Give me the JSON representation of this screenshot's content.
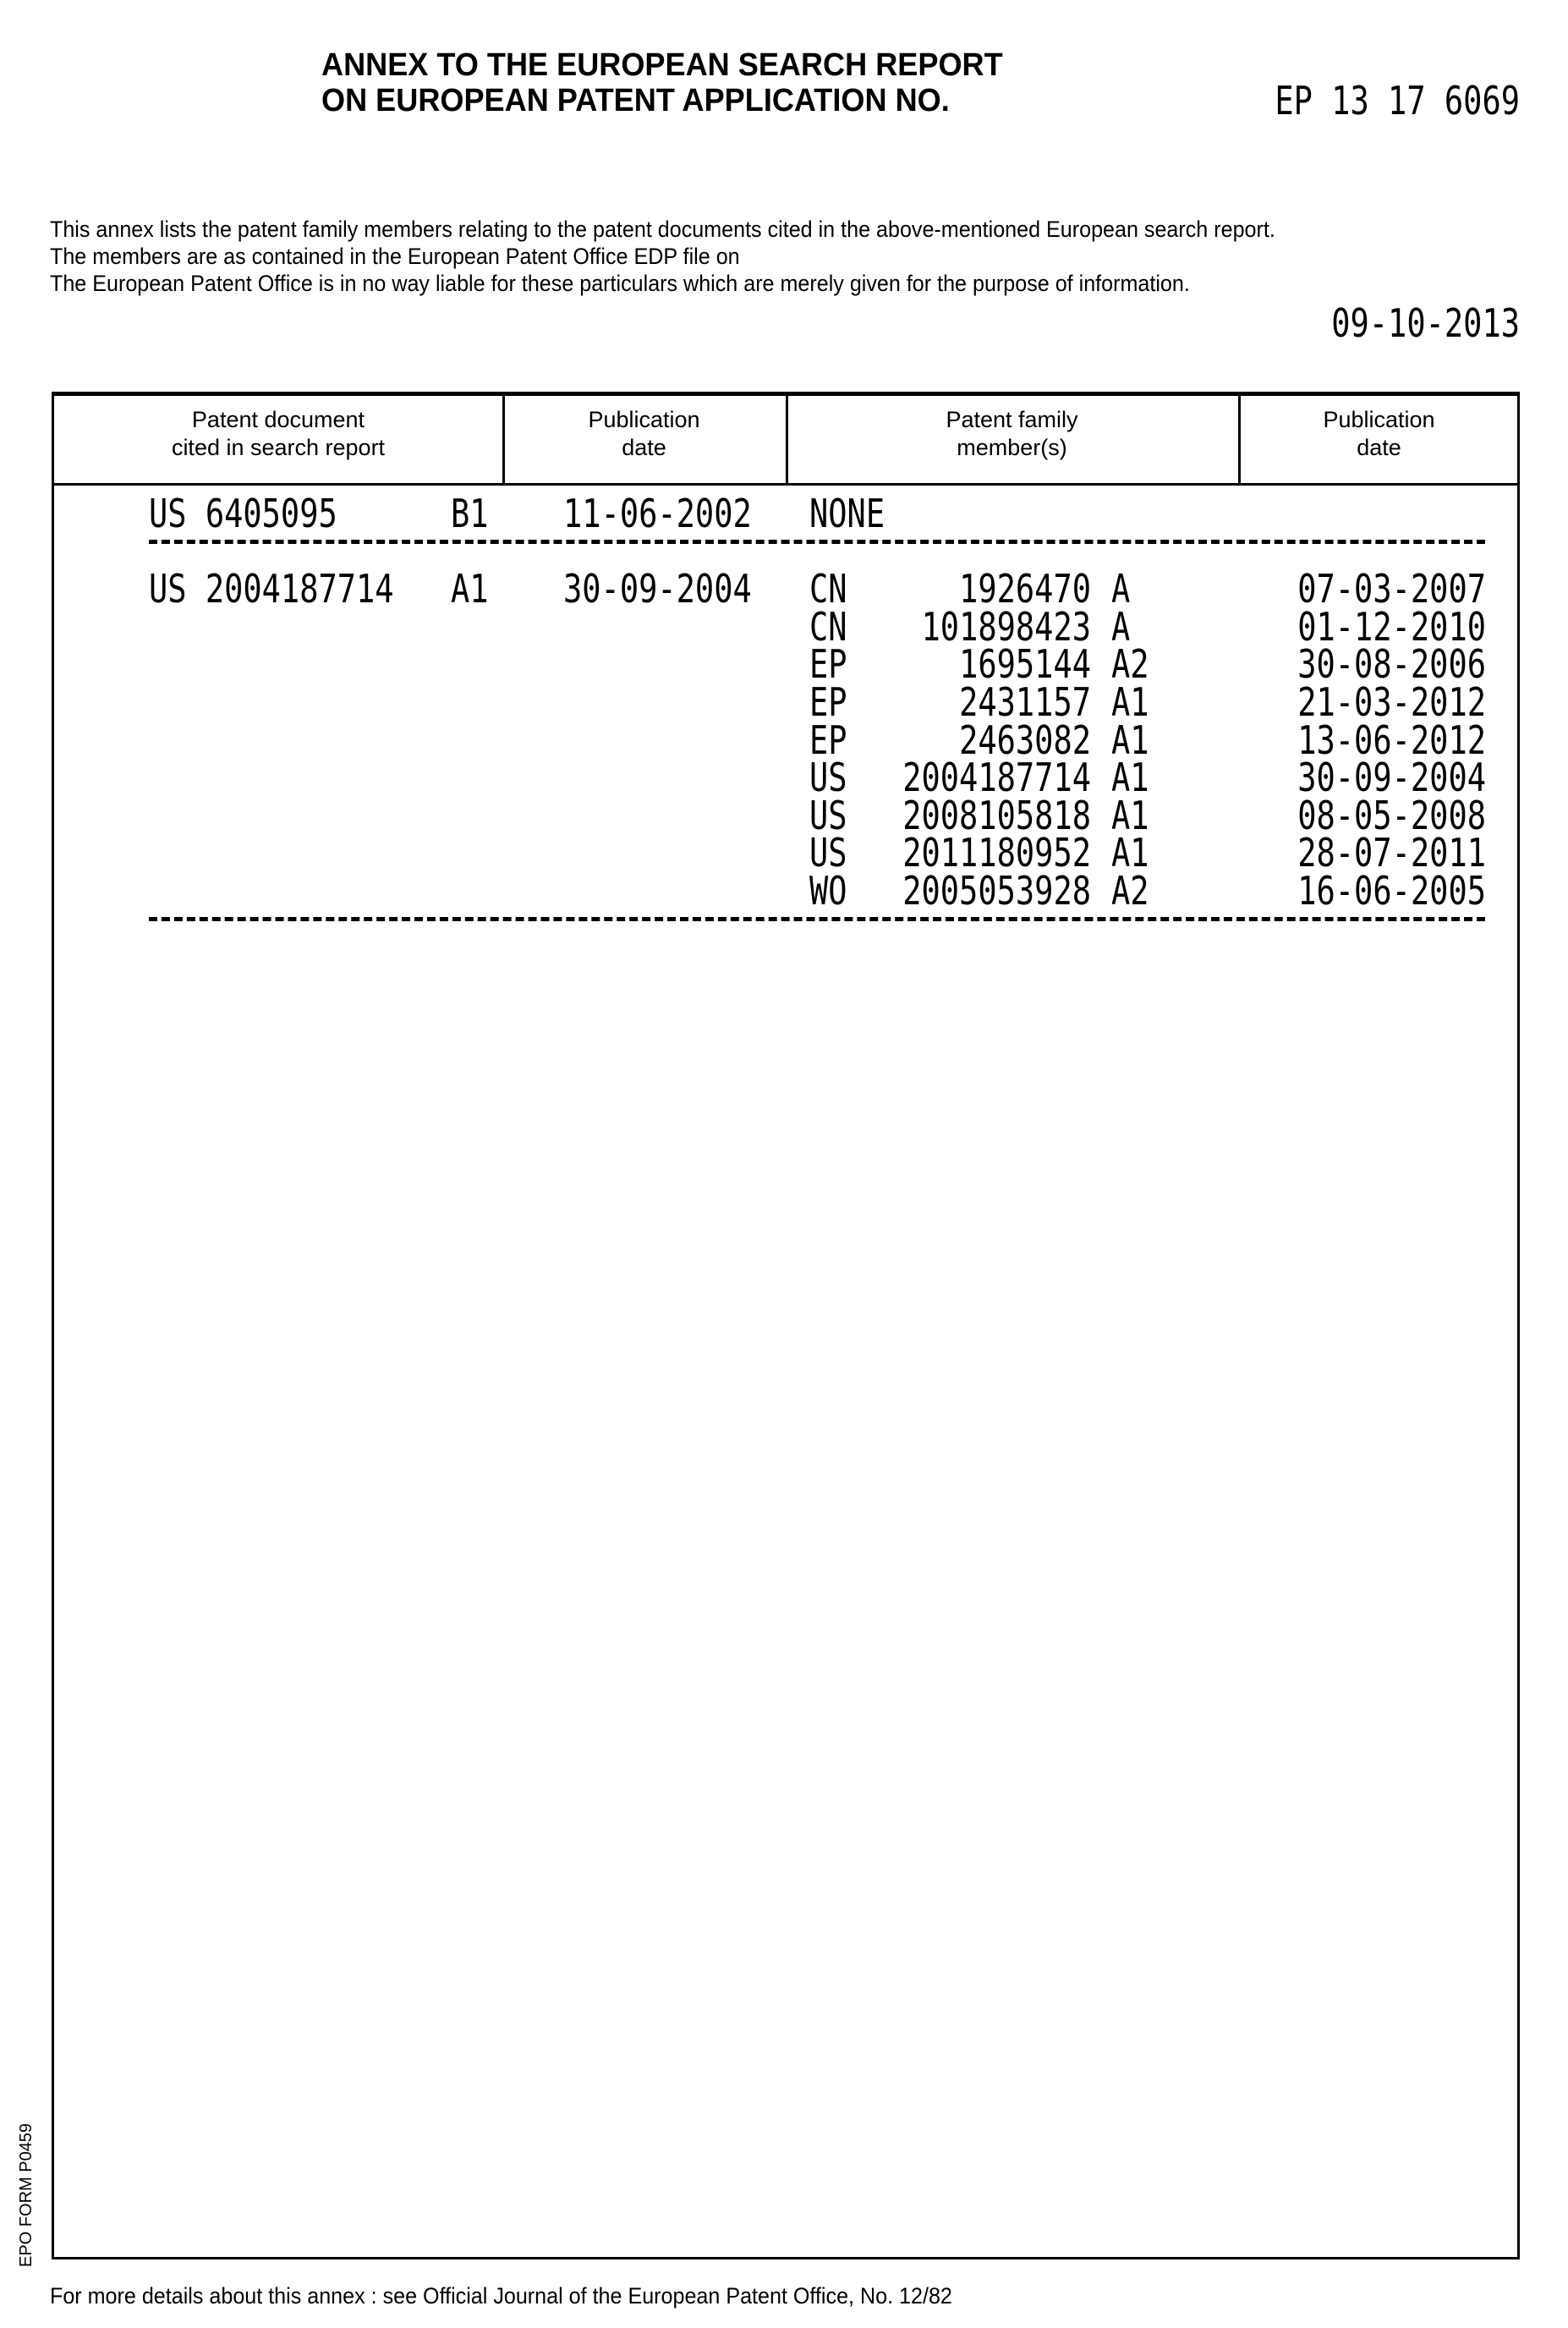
{
  "header": {
    "title_line1": "ANNEX TO THE EUROPEAN SEARCH REPORT",
    "title_line2": "ON EUROPEAN PATENT APPLICATION NO.",
    "application_number": "EP 13 17 6069"
  },
  "intro": {
    "line1": "This annex lists the patent family members relating to the patent documents cited in  the above-mentioned European search report.",
    "line2": "The members are as contained in the European Patent Office EDP file on",
    "line3": "The European Patent Office is in no way liable for these particulars which are merely given for the purpose of information.",
    "date": "09-10-2013"
  },
  "table": {
    "headers": [
      {
        "line1": "Patent document",
        "line2": "cited in search report"
      },
      {
        "line1": "Publication",
        "line2": "date"
      },
      {
        "line1": "Patent family",
        "line2": "member(s)"
      },
      {
        "line1": "Publication",
        "line2": "date"
      }
    ],
    "entries": [
      {
        "document": "US 6405095",
        "kind": "B1",
        "date": "11-06-2002",
        "none_label": "NONE",
        "members": []
      },
      {
        "document": "US 2004187714",
        "kind": "A1",
        "date": "30-09-2004",
        "members": [
          {
            "country": "CN",
            "number": "1926470",
            "kind": "A",
            "date": "07-03-2007"
          },
          {
            "country": "CN",
            "number": "101898423",
            "kind": "A",
            "date": "01-12-2010"
          },
          {
            "country": "EP",
            "number": "1695144",
            "kind": "A2",
            "date": "30-08-2006"
          },
          {
            "country": "EP",
            "number": "2431157",
            "kind": "A1",
            "date": "21-03-2012"
          },
          {
            "country": "EP",
            "number": "2463082",
            "kind": "A1",
            "date": "13-06-2012"
          },
          {
            "country": "US",
            "number": "2004187714",
            "kind": "A1",
            "date": "30-09-2004"
          },
          {
            "country": "US",
            "number": "2008105818",
            "kind": "A1",
            "date": "08-05-2008"
          },
          {
            "country": "US",
            "number": "2011180952",
            "kind": "A1",
            "date": "28-07-2011"
          },
          {
            "country": "WO",
            "number": "2005053928",
            "kind": "A2",
            "date": "16-06-2005"
          }
        ]
      }
    ]
  },
  "side_label": "EPO FORM P0459",
  "footer": "For more details about this annex : see Official Journal of the European Patent Office, No. 12/82"
}
